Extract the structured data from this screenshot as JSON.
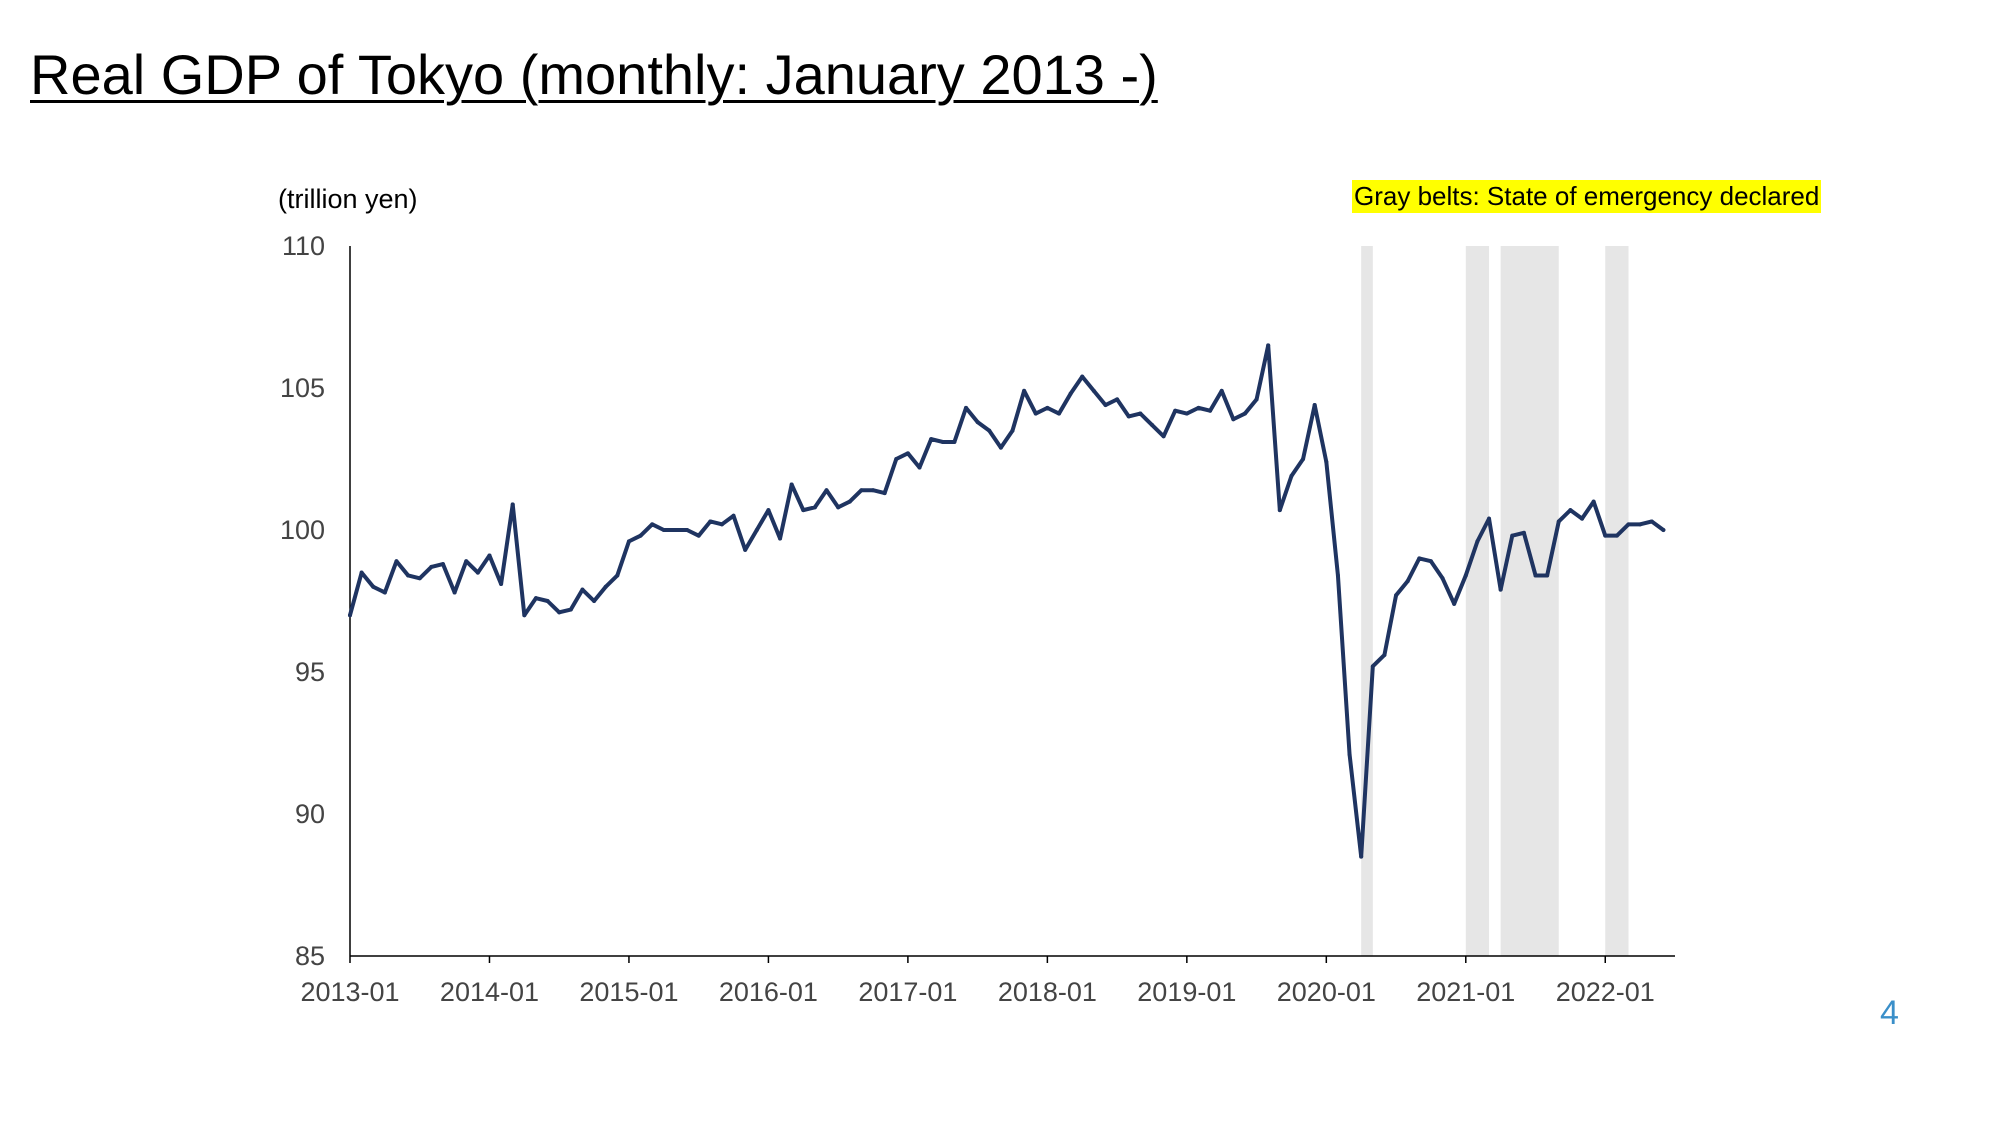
{
  "title": "Real GDP of Tokyo (monthly: January 2013 -)",
  "page_number": "4",
  "colors": {
    "line": "#1f3461",
    "belt": "#e6e6e6",
    "highlight": "#ffff00",
    "page_number": "#3a8fc9"
  },
  "chart_data": {
    "type": "line",
    "title": "Real GDP of Tokyo (monthly: January 2013 -)",
    "ylabel": "(trillion yen)",
    "xlabel": "",
    "ylim": [
      85,
      110
    ],
    "yticks": [
      85,
      90,
      95,
      100,
      105,
      110
    ],
    "x_start": "2013-01",
    "x_end": "2022-07",
    "xticks": [
      "2013-01",
      "2014-01",
      "2015-01",
      "2016-01",
      "2017-01",
      "2018-01",
      "2019-01",
      "2020-01",
      "2021-01",
      "2022-01"
    ],
    "grid": false,
    "annotation": "Gray belts: State of emergency declared",
    "shaded_periods": [
      {
        "start": "2020-04",
        "end": "2020-05"
      },
      {
        "start": "2021-01",
        "end": "2021-03"
      },
      {
        "start": "2021-04",
        "end": "2021-09"
      },
      {
        "start": "2022-01",
        "end": "2022-03"
      }
    ],
    "series": [
      {
        "name": "",
        "values": [
          97.0,
          98.5,
          98.0,
          97.8,
          98.9,
          98.4,
          98.3,
          98.7,
          98.8,
          97.8,
          98.9,
          98.5,
          99.1,
          98.1,
          100.9,
          97.0,
          97.6,
          97.5,
          97.1,
          97.2,
          97.9,
          97.5,
          98.0,
          98.4,
          99.6,
          99.8,
          100.2,
          100.0,
          100.0,
          100.0,
          99.8,
          100.3,
          100.2,
          100.5,
          99.3,
          100.0,
          100.7,
          99.7,
          101.6,
          100.7,
          100.8,
          101.4,
          100.8,
          101.0,
          101.4,
          101.4,
          101.3,
          102.5,
          102.7,
          102.2,
          103.2,
          103.1,
          103.1,
          104.3,
          103.8,
          103.5,
          102.9,
          103.5,
          104.9,
          104.1,
          104.3,
          104.1,
          104.8,
          105.4,
          104.9,
          104.4,
          104.6,
          104.0,
          104.1,
          103.7,
          103.3,
          104.2,
          104.1,
          104.3,
          104.2,
          104.9,
          103.9,
          104.1,
          104.6,
          106.5,
          100.7,
          101.9,
          102.5,
          104.4,
          102.4,
          98.4,
          92.1,
          88.5,
          95.2,
          95.6,
          97.7,
          98.2,
          99.0,
          98.9,
          98.3,
          97.4,
          98.4,
          99.6,
          100.4,
          97.9,
          99.8,
          99.9,
          98.4,
          98.4,
          100.3,
          100.7,
          100.4,
          101.0,
          99.8,
          99.8,
          100.2,
          100.2,
          100.3,
          100.0
        ]
      }
    ]
  }
}
